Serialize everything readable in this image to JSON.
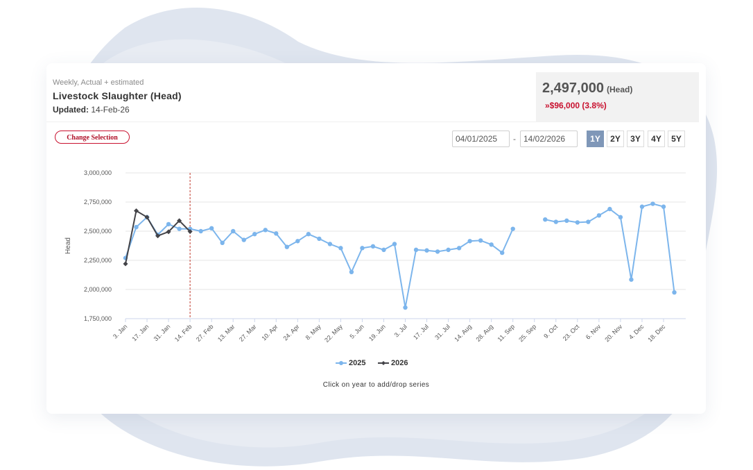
{
  "colors": {
    "series_2025": "#7cb5ec",
    "series_2026": "#434348",
    "accent": "#c8102e",
    "active_range": "#7f97b8",
    "current_line": "#c0392b"
  },
  "header": {
    "subtitle": "Weekly, Actual + estimated",
    "title": "Livestock Slaughter (Head)",
    "updated_label": "Updated:",
    "updated_value": "14-Feb-26"
  },
  "kpi": {
    "value": "2,497,000",
    "unit": "(Head)",
    "change": "»$96,000 (3.8%)"
  },
  "controls": {
    "change_selection": "Change Selection",
    "date_from": "04/01/2025",
    "date_to": "14/02/2026",
    "date_separator": "-",
    "ranges": [
      {
        "label": "1Y",
        "active": true
      },
      {
        "label": "2Y",
        "active": false
      },
      {
        "label": "3Y",
        "active": false
      },
      {
        "label": "4Y",
        "active": false
      },
      {
        "label": "5Y",
        "active": false
      }
    ]
  },
  "hint": "Click on year to add/drop series",
  "chart_data": {
    "type": "line",
    "ylabel": "Head",
    "ylim": [
      1750000,
      3000000
    ],
    "yticks": [
      "1,750,000",
      "2,000,000",
      "2,250,000",
      "2,500,000",
      "2,750,000",
      "3,000,000"
    ],
    "yticks_values": [
      1750000,
      2000000,
      2250000,
      2500000,
      2750000,
      3000000
    ],
    "x_tick_labels": [
      "3. Jan",
      "17. Jan",
      "31. Jan",
      "14. Feb",
      "27. Feb",
      "13. Mar",
      "27. Mar",
      "10. Apr",
      "24. Apr",
      "8. May",
      "22. May",
      "5. Jun",
      "19. Jun",
      "3. Jul",
      "17. Jul",
      "31. Jul",
      "14. Aug",
      "28. Aug",
      "11. Sep",
      "25. Sep",
      "9. Oct",
      "23. Oct",
      "6. Nov",
      "20. Nov",
      "4. Dec",
      "18. Dec"
    ],
    "current_week_index": 6,
    "grid": true,
    "legend_position": "bottom",
    "series": [
      {
        "name": "2025",
        "color": "#7cb5ec",
        "values": [
          2270000,
          2535000,
          2620000,
          2470000,
          2560000,
          2520000,
          2520000,
          2500000,
          2525000,
          2400000,
          2500000,
          2425000,
          2475000,
          2510000,
          2480000,
          2365000,
          2415000,
          2475000,
          2435000,
          2390000,
          2355000,
          2150000,
          2355000,
          2370000,
          2340000,
          2390000,
          1845000,
          2340000,
          2335000,
          2325000,
          2340000,
          2355000,
          2415000,
          2420000,
          2385000,
          2315000,
          2520000,
          null,
          null,
          2600000,
          2580000,
          2590000,
          2575000,
          2580000,
          2635000,
          2690000,
          2620000,
          2085000,
          2710000,
          2735000,
          2710000,
          1975000
        ]
      },
      {
        "name": "2026",
        "color": "#434348",
        "values": [
          2220000,
          2675000,
          2620000,
          2460000,
          2495000,
          2590000,
          2497000
        ]
      }
    ]
  }
}
